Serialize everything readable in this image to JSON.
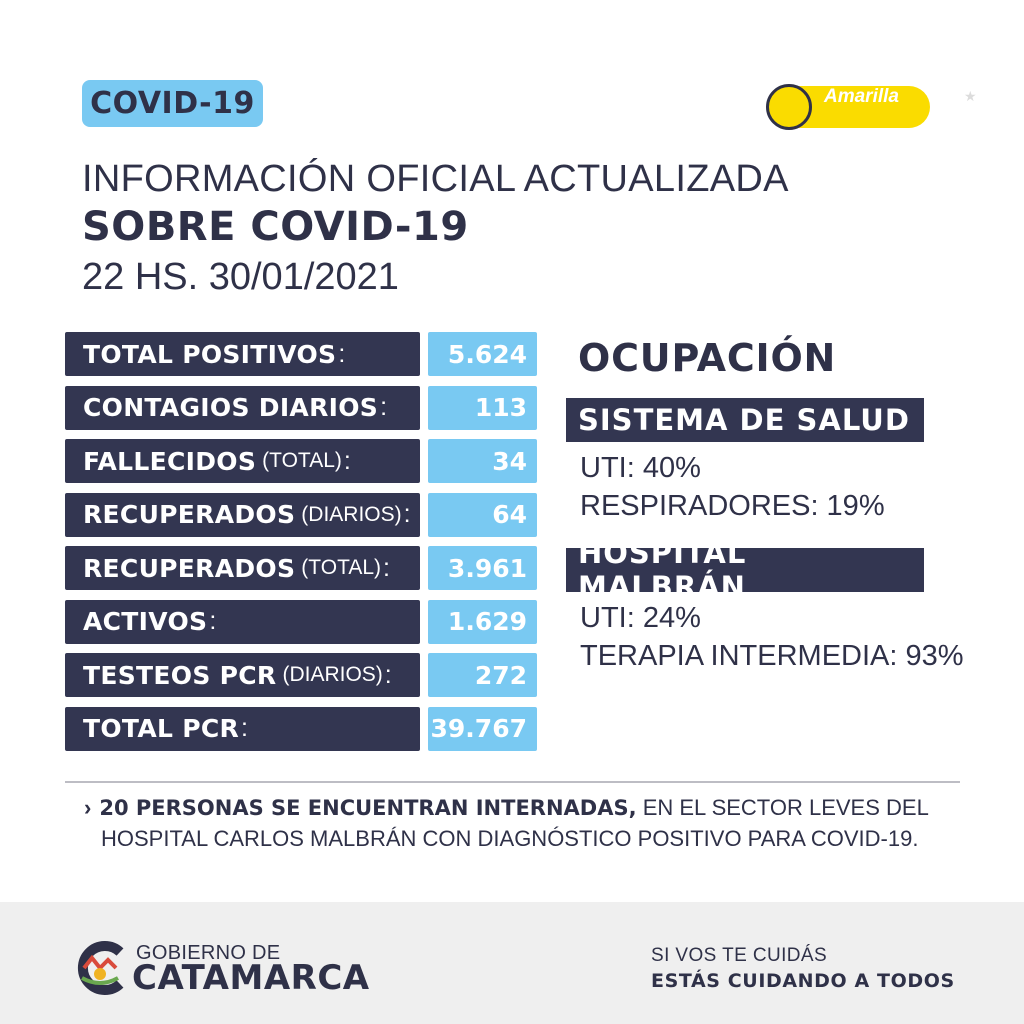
{
  "badge": "COVID-19",
  "status": {
    "label": "Amarilla",
    "color": "#fadc00"
  },
  "header": {
    "line1": "INFORMACIÓN OFICIAL ACTUALIZADA",
    "line2": "SOBRE COVID-19",
    "line3": "22 HS. 30/01/2021"
  },
  "stats": [
    {
      "label": "TOTAL POSITIVOS",
      "sub": "",
      "value": "5.624"
    },
    {
      "label": "CONTAGIOS DIARIOS",
      "sub": "",
      "value": "113"
    },
    {
      "label": "FALLECIDOS",
      "sub": "(TOTAL)",
      "value": "34"
    },
    {
      "label": "RECUPERADOS",
      "sub": "(DIARIOS)",
      "value": "64"
    },
    {
      "label": "RECUPERADOS",
      "sub": "(TOTAL)",
      "value": "3.961"
    },
    {
      "label": "ACTIVOS",
      "sub": "",
      "value": "1.629"
    },
    {
      "label": "TESTEOS PCR",
      "sub": "(DIARIOS)",
      "value": "272"
    },
    {
      "label": "TOTAL PCR",
      "sub": "",
      "value": "39.767"
    }
  ],
  "occupancy": {
    "title": "OCUPACIÓN",
    "system_title": "SISTEMA DE SALUD",
    "system_lines": [
      "UTI: 40%",
      "RESPIRADORES: 19%"
    ],
    "hospital_title": "HOSPITAL MALBRÁN",
    "hospital_lines": [
      "UTI: 24%",
      "TERAPIA INTERMEDIA: 93%"
    ]
  },
  "note": {
    "bold": "20 PERSONAS SE ENCUENTRAN INTERNADAS,",
    "rest": " EN EL SECTOR LEVES DEL",
    "line2": "HOSPITAL CARLOS MALBRÁN CON DIAGNÓSTICO POSITIVO PARA COVID-19."
  },
  "footer": {
    "logo_top": "GOBIERNO DE",
    "logo_main": "CATAMARCA",
    "slogan1": "SI VOS TE CUIDÁS",
    "slogan2": "ESTÁS CUIDANDO A TODOS"
  },
  "colors": {
    "navy": "#333651",
    "light_blue": "#79c9f2",
    "yellow": "#fadc00"
  }
}
